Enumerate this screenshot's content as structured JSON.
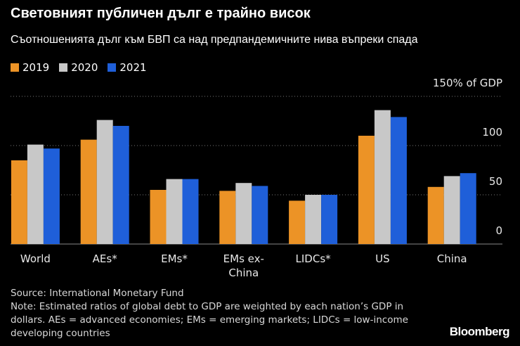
{
  "chart_data": {
    "type": "bar",
    "title": "Световният публичен дълг е трайно висок",
    "subtitle": "Съотношенията дълг към БВП са над предпандемичните нива въпреки спада",
    "categories": [
      "World",
      "AEs*",
      "EMs*",
      "EMs ex-China",
      "LIDCs*",
      "US",
      "China"
    ],
    "series": [
      {
        "name": "2019",
        "color": "#ec9326",
        "values": [
          85,
          106,
          55,
          54,
          44,
          110,
          58
        ]
      },
      {
        "name": "2020",
        "color": "#c8c8c8",
        "values": [
          101,
          126,
          66,
          62,
          50,
          136,
          69
        ]
      },
      {
        "name": "2021",
        "color": "#1f5fd9",
        "values": [
          97,
          120,
          66,
          59,
          50,
          129,
          72
        ]
      }
    ],
    "ylim": [
      0,
      150
    ],
    "yticks": [
      0,
      50,
      100,
      {
        "value": 150,
        "label": "150% of GDP"
      }
    ],
    "grid": true,
    "source": "Source: International Monetary Fund",
    "note": "Note: Estimated ratios of global debt to GDP are weighted by each nation’s GDP in dollars. AEs = advanced economies; EMs = emerging markets; LIDCs = low-income developing countries",
    "brand": "Bloomberg"
  }
}
